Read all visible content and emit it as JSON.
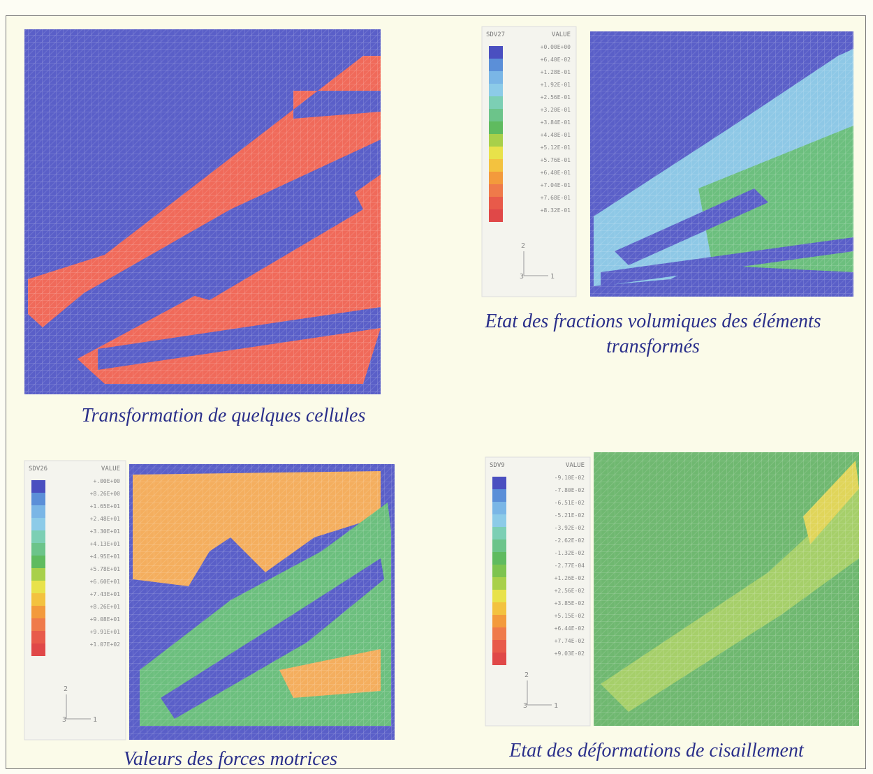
{
  "panels": [
    {
      "caption": "Transformation de quelques cellules"
    },
    {
      "legend": {
        "variable": "SDV27",
        "header": "VALUE",
        "values": [
          "+0.00E+00",
          "+6.40E-02",
          "+1.28E-01",
          "+1.92E-01",
          "+2.56E-01",
          "+3.20E-01",
          "+3.84E-01",
          "+4.48E-01",
          "+5.12E-01",
          "+5.76E-01",
          "+6.40E-01",
          "+7.04E-01",
          "+7.68E-01",
          "+8.32E-01"
        ]
      },
      "triad": {
        "y": "2",
        "z": "3",
        "x": "1"
      },
      "caption": "Etat des fractions volumiques des éléments transformés"
    },
    {
      "legend": {
        "variable": "SDV26",
        "header": "VALUE",
        "values": [
          "+.00E+00",
          "+8.26E+00",
          "+1.65E+01",
          "+2.48E+01",
          "+3.30E+01",
          "+4.13E+01",
          "+4.95E+01",
          "+5.78E+01",
          "+6.60E+01",
          "+7.43E+01",
          "+8.26E+01",
          "+9.08E+01",
          "+9.91E+01",
          "+1.07E+02"
        ]
      },
      "triad": {
        "y": "2",
        "z": "3",
        "x": "1"
      },
      "caption": "Valeurs des forces motrices"
    },
    {
      "legend": {
        "variable": "SDV9",
        "header": "VALUE",
        "values": [
          "-9.10E-02",
          "-7.80E-02",
          "-6.51E-02",
          "-5.21E-02",
          "-3.92E-02",
          "-2.62E-02",
          "-1.32E-02",
          "-2.77E-04",
          "+1.26E-02",
          "+2.56E-02",
          "+3.85E-02",
          "+5.15E-02",
          "+6.44E-02",
          "+7.74E-02",
          "+9.03E-02"
        ]
      },
      "triad": {
        "y": "2",
        "z": "3",
        "x": "1"
      },
      "caption": "Etat des déformations de cisaillement"
    }
  ]
}
